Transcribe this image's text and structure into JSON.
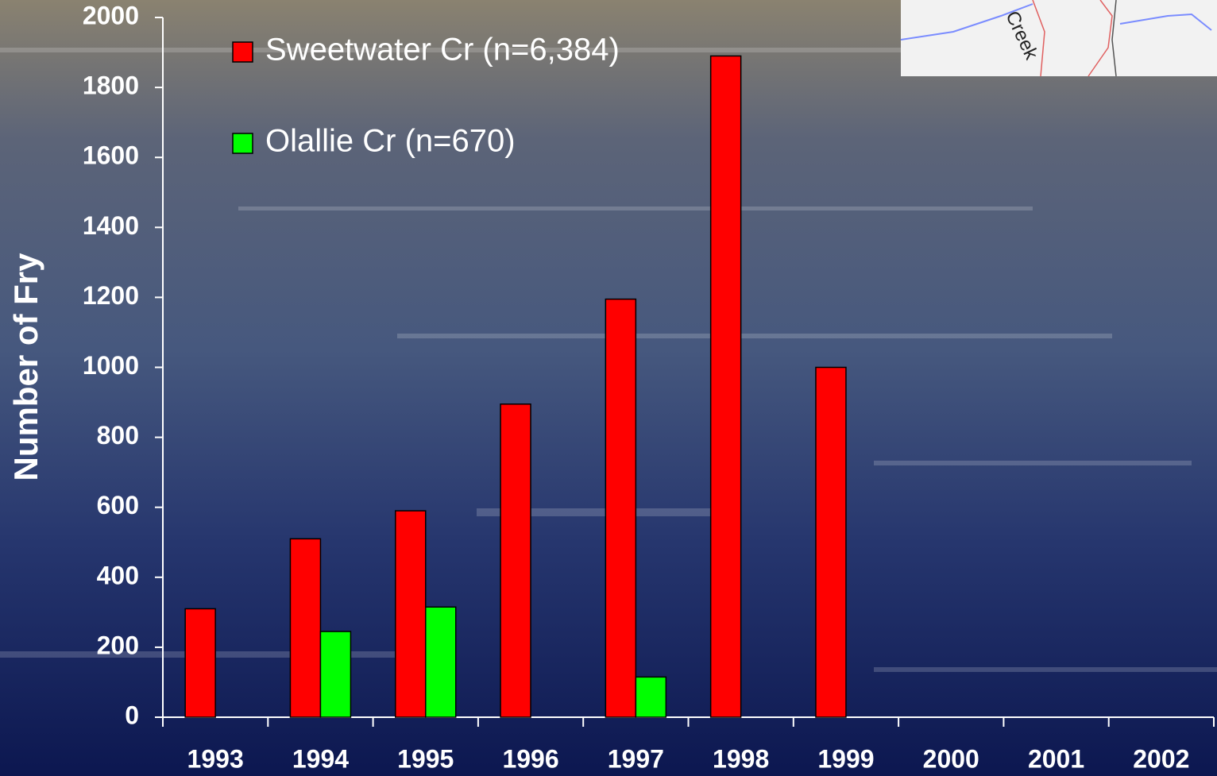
{
  "chart_data": {
    "type": "bar",
    "y_label": "Number of Fry",
    "categories": [
      "1993",
      "1994",
      "1995",
      "1996",
      "1997",
      "1998",
      "1999",
      "2000",
      "2001",
      "2002"
    ],
    "series": [
      {
        "name": "Sweetwater Cr (n=6,384)",
        "color": "#ff0000",
        "values": [
          310,
          510,
          590,
          895,
          1195,
          1890,
          1000,
          null,
          null,
          null
        ]
      },
      {
        "name": "Olallie Cr (n=670)",
        "color": "#00ff00",
        "values": [
          null,
          245,
          315,
          null,
          115,
          null,
          null,
          null,
          null,
          null
        ]
      }
    ],
    "ylim": [
      0,
      2000
    ],
    "yticks": [
      0,
      200,
      400,
      600,
      800,
      1000,
      1200,
      1400,
      1600,
      1800,
      2000
    ],
    "annotations": [
      "Creek"
    ]
  }
}
